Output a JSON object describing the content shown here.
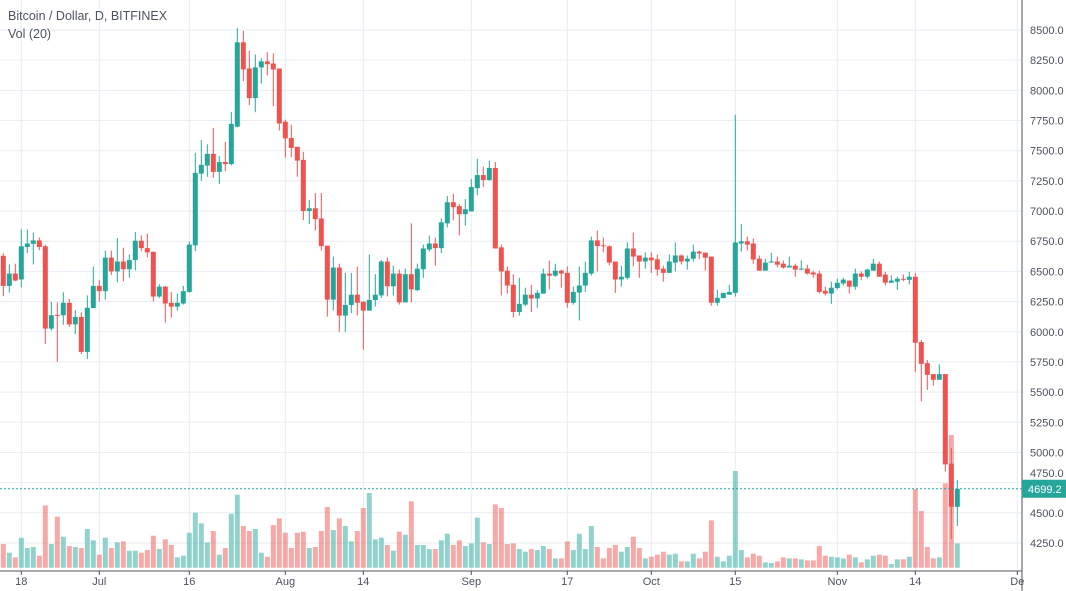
{
  "header": {
    "title": "Bitcoin / Dollar, D, BITFINEX",
    "volume_indicator": "Vol (20)"
  },
  "chart_data": {
    "type": "candlestick",
    "title": "Bitcoin / Dollar, D, BITFINEX",
    "colors": {
      "up": "#26a69a",
      "down": "#ef5350",
      "grid": "#e6edf3",
      "last_price": "#26a69a"
    },
    "ylim": [
      4100,
      8580
    ],
    "y_ticks": [
      "8500.0",
      "8250.0",
      "8000.0",
      "7750.0",
      "7500.0",
      "7250.0",
      "7000.0",
      "6750.0",
      "6500.0",
      "6250.0",
      "6000.0",
      "5750.0",
      "5500.0",
      "5250.0",
      "5000.0",
      "4750.0",
      "4500.0",
      "4250.0"
    ],
    "x_ticks": [
      {
        "date": "Jun 18",
        "label": "18"
      },
      {
        "date": "Jul 1",
        "label": "Jul"
      },
      {
        "date": "Jul 16",
        "label": "16"
      },
      {
        "date": "Aug 1",
        "label": "Aug"
      },
      {
        "date": "Aug 14",
        "label": "14"
      },
      {
        "date": "Sep 1",
        "label": "Sep"
      },
      {
        "date": "Sep 17",
        "label": "17"
      },
      {
        "date": "Oct 1",
        "label": "Oct"
      },
      {
        "date": "Oct 15",
        "label": "15"
      },
      {
        "date": "Nov 1",
        "label": "Nov"
      },
      {
        "date": "Nov 14",
        "label": "14"
      },
      {
        "date": "Dec 1",
        "label": "De"
      }
    ],
    "grid": true,
    "last_price": "4699.2",
    "columns": [
      "date",
      "open",
      "high",
      "low",
      "close",
      "volume_relative"
    ],
    "candles": [
      [
        "Jun 15",
        6629,
        6652,
        6295,
        6380,
        71
      ],
      [
        "Jun 16",
        6380,
        6558,
        6325,
        6482,
        45
      ],
      [
        "Jun 17",
        6482,
        6564,
        6418,
        6424,
        31
      ],
      [
        "Jun 18",
        6433,
        6848,
        6368,
        6708,
        90
      ],
      [
        "Jun 19",
        6702,
        6848,
        6652,
        6731,
        59
      ],
      [
        "Jun 20",
        6728,
        6822,
        6558,
        6757,
        62
      ],
      [
        "Jun 21",
        6757,
        6781,
        6675,
        6702,
        36
      ],
      [
        "Jun 22",
        6708,
        6722,
        5900,
        6026,
        187
      ],
      [
        "Jun 23",
        6026,
        6249,
        6009,
        6137,
        71
      ],
      [
        "Jun 24",
        6140,
        6243,
        5751,
        6137,
        153
      ],
      [
        "Jun 25",
        6137,
        6327,
        6058,
        6240,
        93
      ],
      [
        "Jun 26",
        6240,
        6272,
        6041,
        6061,
        65
      ],
      [
        "Jun 27",
        6061,
        6178,
        5980,
        6123,
        62
      ],
      [
        "Jun 28",
        6123,
        6161,
        5816,
        5833,
        59
      ],
      [
        "Jun 29",
        5833,
        6301,
        5775,
        6199,
        116
      ],
      [
        "Jun 30",
        6196,
        6541,
        6196,
        6380,
        82
      ],
      [
        "Jul 1",
        6380,
        6427,
        6251,
        6336,
        39
      ],
      [
        "Jul 2",
        6336,
        6673,
        6266,
        6614,
        90
      ],
      [
        "Jul 3",
        6614,
        6673,
        6471,
        6500,
        59
      ],
      [
        "Jul 4",
        6500,
        6778,
        6409,
        6582,
        76
      ],
      [
        "Jul 5",
        6582,
        6696,
        6418,
        6518,
        79
      ],
      [
        "Jul 6",
        6518,
        6640,
        6447,
        6594,
        51
      ],
      [
        "Jul 7",
        6594,
        6827,
        6509,
        6754,
        51
      ],
      [
        "Jul 8",
        6754,
        6798,
        6667,
        6693,
        45
      ],
      [
        "Jul 9",
        6693,
        6813,
        6617,
        6658,
        53
      ],
      [
        "Jul 10",
        6661,
        6667,
        6251,
        6292,
        96
      ],
      [
        "Jul 11",
        6292,
        6395,
        6281,
        6374,
        56
      ],
      [
        "Jul 12",
        6374,
        6380,
        6076,
        6234,
        85
      ],
      [
        "Jul 13",
        6240,
        6330,
        6117,
        6208,
        68
      ],
      [
        "Jul 14",
        6208,
        6316,
        6175,
        6240,
        31
      ],
      [
        "Jul 15",
        6234,
        6380,
        6225,
        6336,
        36
      ],
      [
        "Jul 16",
        6330,
        6748,
        6322,
        6722,
        105
      ],
      [
        "Jul 17",
        6716,
        7482,
        6667,
        7316,
        165
      ],
      [
        "Jul 18",
        7310,
        7588,
        7251,
        7383,
        133
      ],
      [
        "Jul 19",
        7377,
        7553,
        7284,
        7474,
        76
      ],
      [
        "Jul 20",
        7474,
        7690,
        7275,
        7325,
        110
      ],
      [
        "Jul 21",
        7325,
        7456,
        7225,
        7406,
        39
      ],
      [
        "Jul 22",
        7406,
        7573,
        7330,
        7389,
        59
      ],
      [
        "Jul 23",
        7389,
        7822,
        7377,
        7722,
        162
      ],
      [
        "Jul 24",
        7699,
        8515,
        7693,
        8398,
        219
      ],
      [
        "Jul 25",
        8398,
        8494,
        8076,
        8173,
        125
      ],
      [
        "Jul 26",
        8181,
        8330,
        7877,
        7936,
        110
      ],
      [
        "Jul 27",
        7936,
        8298,
        7819,
        8190,
        116
      ],
      [
        "Jul 28",
        8190,
        8266,
        8056,
        8240,
        45
      ],
      [
        "Jul 29",
        8240,
        8316,
        8123,
        8216,
        33
      ],
      [
        "Jul 30",
        8222,
        8307,
        7868,
        8173,
        128
      ],
      [
        "Jul 31",
        8181,
        8181,
        7667,
        7725,
        148
      ],
      [
        "Aug 1",
        7740,
        7757,
        7442,
        7602,
        105
      ],
      [
        "Aug 2",
        7605,
        7716,
        7447,
        7523,
        59
      ],
      [
        "Aug 3",
        7532,
        7532,
        7284,
        7418,
        105
      ],
      [
        "Aug 4",
        7424,
        7491,
        6924,
        7000,
        108
      ],
      [
        "Aug 5",
        7000,
        7091,
        6892,
        7023,
        59
      ],
      [
        "Aug 6",
        7023,
        7149,
        6839,
        6933,
        62
      ],
      [
        "Aug 7",
        6939,
        7149,
        6672,
        6710,
        110
      ],
      [
        "Aug 8",
        6713,
        6713,
        6126,
        6266,
        182
      ],
      [
        "Aug 9",
        6266,
        6623,
        6175,
        6532,
        113
      ],
      [
        "Aug 10",
        6532,
        6564,
        6000,
        6134,
        148
      ],
      [
        "Aug 11",
        6134,
        6488,
        6000,
        6222,
        125
      ],
      [
        "Aug 12",
        6222,
        6488,
        6155,
        6307,
        79
      ],
      [
        "Aug 13",
        6307,
        6541,
        6134,
        6240,
        110
      ],
      [
        "Aug 14",
        6249,
        6249,
        5851,
        6175,
        179
      ],
      [
        "Aug 15",
        6175,
        6640,
        6175,
        6263,
        224
      ],
      [
        "Aug 16",
        6263,
        6477,
        6208,
        6307,
        85
      ],
      [
        "Aug 17",
        6301,
        6594,
        6281,
        6582,
        90
      ],
      [
        "Aug 18",
        6582,
        6614,
        6292,
        6377,
        68
      ],
      [
        "Aug 19",
        6377,
        6547,
        6301,
        6482,
        51
      ],
      [
        "Aug 20",
        6482,
        6515,
        6225,
        6243,
        108
      ],
      [
        "Aug 21",
        6243,
        6523,
        6243,
        6477,
        99
      ],
      [
        "Aug 22",
        6477,
        6898,
        6243,
        6351,
        199
      ],
      [
        "Aug 23",
        6345,
        6564,
        6336,
        6523,
        68
      ],
      [
        "Aug 24",
        6518,
        6722,
        6447,
        6690,
        68
      ],
      [
        "Aug 25",
        6681,
        6798,
        6664,
        6731,
        56
      ],
      [
        "Aug 26",
        6731,
        6781,
        6547,
        6693,
        56
      ],
      [
        "Aug 27",
        6693,
        6939,
        6652,
        6906,
        82
      ],
      [
        "Aug 28",
        6898,
        7126,
        6865,
        7073,
        102
      ],
      [
        "Aug 29",
        7073,
        7143,
        6924,
        7032,
        68
      ],
      [
        "Aug 30",
        7041,
        7058,
        6798,
        6974,
        82
      ],
      [
        "Aug 31",
        6974,
        7099,
        6880,
        7015,
        65
      ],
      [
        "Sep 1",
        6997,
        7266,
        6997,
        7199,
        73
      ],
      [
        "Sep 2",
        7190,
        7433,
        7132,
        7298,
        150
      ],
      [
        "Sep 3",
        7298,
        7368,
        7199,
        7257,
        76
      ],
      [
        "Sep 4",
        7257,
        7415,
        7251,
        7357,
        71
      ],
      [
        "Sep 5",
        7357,
        7406,
        6690,
        6690,
        190
      ],
      [
        "Sep 6",
        6699,
        6722,
        6301,
        6500,
        179
      ],
      [
        "Sep 7",
        6506,
        6541,
        6316,
        6383,
        71
      ],
      [
        "Sep 8",
        6389,
        6477,
        6117,
        6164,
        73
      ],
      [
        "Sep 9",
        6164,
        6447,
        6134,
        6231,
        56
      ],
      [
        "Sep 10",
        6225,
        6365,
        6213,
        6307,
        48
      ],
      [
        "Sep 11",
        6307,
        6389,
        6164,
        6275,
        56
      ],
      [
        "Sep 12",
        6275,
        6345,
        6199,
        6322,
        53
      ],
      [
        "Sep 13",
        6316,
        6523,
        6316,
        6482,
        65
      ],
      [
        "Sep 14",
        6482,
        6591,
        6351,
        6465,
        56
      ],
      [
        "Sep 15",
        6465,
        6564,
        6456,
        6506,
        28
      ],
      [
        "Sep 16",
        6506,
        6515,
        6365,
        6482,
        28
      ],
      [
        "Sep 17",
        6488,
        6541,
        6199,
        6240,
        79
      ],
      [
        "Sep 18",
        6240,
        6374,
        6225,
        6330,
        53
      ],
      [
        "Sep 19",
        6325,
        6541,
        6094,
        6383,
        102
      ],
      [
        "Sep 20",
        6383,
        6582,
        6330,
        6488,
        56
      ],
      [
        "Sep 21",
        6482,
        6789,
        6465,
        6757,
        125
      ],
      [
        "Sep 22",
        6757,
        6839,
        6500,
        6710,
        62
      ],
      [
        "Sep 23",
        6716,
        6781,
        6658,
        6708,
        28
      ],
      [
        "Sep 24",
        6708,
        6716,
        6550,
        6573,
        59
      ],
      [
        "Sep 25",
        6582,
        6582,
        6322,
        6433,
        68
      ],
      [
        "Sep 26",
        6433,
        6547,
        6374,
        6456,
        48
      ],
      [
        "Sep 27",
        6447,
        6740,
        6433,
        6690,
        62
      ],
      [
        "Sep 28",
        6690,
        6822,
        6541,
        6623,
        93
      ],
      [
        "Sep 29",
        6632,
        6632,
        6447,
        6582,
        59
      ],
      [
        "Sep 30",
        6582,
        6658,
        6523,
        6614,
        28
      ],
      [
        "Oct 1",
        6614,
        6658,
        6488,
        6591,
        33
      ],
      [
        "Oct 2",
        6600,
        6640,
        6465,
        6515,
        39
      ],
      [
        "Oct 3",
        6523,
        6547,
        6415,
        6488,
        48
      ],
      [
        "Oct 4",
        6488,
        6640,
        6488,
        6582,
        39
      ],
      [
        "Oct 5",
        6573,
        6740,
        6500,
        6632,
        42
      ],
      [
        "Oct 6",
        6632,
        6640,
        6558,
        6582,
        19
      ],
      [
        "Oct 7",
        6582,
        6632,
        6515,
        6605,
        19
      ],
      [
        "Oct 8",
        6605,
        6722,
        6582,
        6664,
        42
      ],
      [
        "Oct 9",
        6664,
        6673,
        6600,
        6649,
        28
      ],
      [
        "Oct 10",
        6655,
        6655,
        6506,
        6614,
        48
      ],
      [
        "Oct 11",
        6623,
        6623,
        6216,
        6240,
        142
      ],
      [
        "Oct 12",
        6240,
        6348,
        6216,
        6281,
        33
      ],
      [
        "Oct 13",
        6278,
        6322,
        6278,
        6322,
        19
      ],
      [
        "Oct 14",
        6307,
        6389,
        6307,
        6330,
        36
      ],
      [
        "Oct 15",
        6322,
        7798,
        6292,
        6740,
        290
      ],
      [
        "Oct 16",
        6731,
        6892,
        6664,
        6749,
        53
      ],
      [
        "Oct 17",
        6749,
        6789,
        6673,
        6722,
        31
      ],
      [
        "Oct 18",
        6731,
        6772,
        6564,
        6599,
        42
      ],
      [
        "Oct 19",
        6605,
        6632,
        6506,
        6506,
        36
      ],
      [
        "Oct 20",
        6506,
        6605,
        6506,
        6573,
        16
      ],
      [
        "Oct 21",
        6573,
        6655,
        6573,
        6582,
        14
      ],
      [
        "Oct 22",
        6582,
        6623,
        6532,
        6556,
        19
      ],
      [
        "Oct 23",
        6564,
        6591,
        6523,
        6532,
        31
      ],
      [
        "Oct 24",
        6532,
        6623,
        6532,
        6547,
        28
      ],
      [
        "Oct 25",
        6547,
        6564,
        6456,
        6515,
        28
      ],
      [
        "Oct 26",
        6515,
        6591,
        6509,
        6523,
        25
      ],
      [
        "Oct 27",
        6523,
        6555,
        6474,
        6482,
        22
      ],
      [
        "Oct 28",
        6491,
        6506,
        6447,
        6474,
        22
      ],
      [
        "Oct 29",
        6482,
        6506,
        6316,
        6330,
        65
      ],
      [
        "Oct 30",
        6339,
        6374,
        6301,
        6316,
        36
      ],
      [
        "Oct 31",
        6316,
        6415,
        6231,
        6365,
        33
      ],
      [
        "Nov 1",
        6362,
        6439,
        6351,
        6406,
        31
      ],
      [
        "Nov 2",
        6400,
        6447,
        6383,
        6432,
        28
      ],
      [
        "Nov 3",
        6424,
        6424,
        6316,
        6374,
        39
      ],
      [
        "Nov 4",
        6374,
        6523,
        6348,
        6482,
        31
      ],
      [
        "Nov 5",
        6482,
        6500,
        6430,
        6456,
        16
      ],
      [
        "Nov 6",
        6456,
        6523,
        6439,
        6515,
        25
      ],
      [
        "Nov 7",
        6506,
        6605,
        6506,
        6564,
        36
      ],
      [
        "Nov 8",
        6564,
        6582,
        6456,
        6456,
        39
      ],
      [
        "Nov 9",
        6474,
        6497,
        6383,
        6406,
        36
      ],
      [
        "Nov 10",
        6406,
        6465,
        6406,
        6424,
        11
      ],
      [
        "Nov 11",
        6415,
        6456,
        6348,
        6439,
        25
      ],
      [
        "Nov 12",
        6439,
        6474,
        6418,
        6433,
        25
      ],
      [
        "Nov 13",
        6430,
        6497,
        6392,
        6456,
        33
      ],
      [
        "Nov 14",
        6456,
        6488,
        5667,
        5909,
        236
      ],
      [
        "Nov 15",
        5915,
        5933,
        5424,
        5734,
        170
      ],
      [
        "Nov 16",
        5740,
        5766,
        5518,
        5643,
        62
      ],
      [
        "Nov 17",
        5649,
        5649,
        5553,
        5602,
        28
      ],
      [
        "Nov 18",
        5602,
        5731,
        5602,
        5649,
        31
      ],
      [
        "Nov 19",
        5649,
        5649,
        4842,
        4901,
        253
      ],
      [
        "Nov 20",
        4907,
        5038,
        4281,
        4550,
        398
      ],
      [
        "Nov 21",
        4550,
        4772,
        4392,
        4699.2,
        73
      ]
    ]
  }
}
